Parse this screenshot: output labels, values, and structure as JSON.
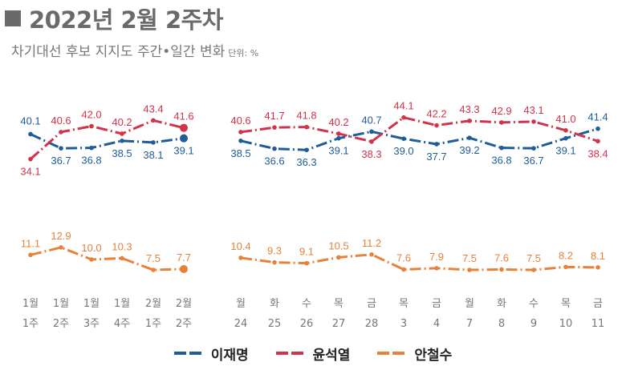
{
  "title": "2022년 2월 2주차",
  "subtitle": "차기대선 후보 지지도 주간•일간 변화",
  "unit": "단위: %",
  "chart_data": [
    {
      "type": "line",
      "categories": [
        [
          "1월",
          "1주"
        ],
        [
          "1월",
          "2주"
        ],
        [
          "1월",
          "3주"
        ],
        [
          "1월",
          "4주"
        ],
        [
          "2월",
          "1주"
        ],
        [
          "2월",
          "2주"
        ]
      ],
      "series": [
        {
          "name": "이재명",
          "color": "#1f5c99",
          "values": [
            40.1,
            36.7,
            36.8,
            38.5,
            38.1,
            39.1
          ]
        },
        {
          "name": "윤석열",
          "color": "#d1344a",
          "values": [
            34.1,
            40.6,
            42.0,
            40.2,
            43.4,
            41.6
          ]
        },
        {
          "name": "안철수",
          "color": "#e8823a",
          "values": [
            11.1,
            12.9,
            10.0,
            10.3,
            7.5,
            7.7
          ]
        }
      ],
      "value_labels": [
        [
          "40.1",
          "36.7",
          "36.8",
          "38.5",
          "38.1",
          "39.1"
        ],
        [
          "34.1",
          "40.6",
          "42.0",
          "40.2",
          "43.4",
          "41.6"
        ],
        [
          "11.1",
          "12.9",
          "10.0",
          "10.3",
          "7.5",
          "7.7"
        ]
      ],
      "grid": false
    },
    {
      "type": "line",
      "categories": [
        [
          "월",
          "24"
        ],
        [
          "화",
          "25"
        ],
        [
          "수",
          "26"
        ],
        [
          "목",
          "27"
        ],
        [
          "금",
          "28"
        ],
        [
          "목",
          "3"
        ],
        [
          "금",
          "4"
        ],
        [
          "월",
          "7"
        ],
        [
          "화",
          "8"
        ],
        [
          "수",
          "9"
        ],
        [
          "목",
          "10"
        ],
        [
          "금",
          "11"
        ]
      ],
      "series": [
        {
          "name": "이재명",
          "color": "#1f5c99",
          "values": [
            38.5,
            36.6,
            36.3,
            39.1,
            40.7,
            39.0,
            37.7,
            39.2,
            36.8,
            36.7,
            39.1,
            41.4
          ]
        },
        {
          "name": "윤석열",
          "color": "#d1344a",
          "values": [
            40.6,
            41.7,
            41.8,
            40.2,
            38.3,
            44.1,
            42.2,
            43.3,
            42.9,
            43.1,
            41.0,
            38.4
          ]
        },
        {
          "name": "안철수",
          "color": "#e8823a",
          "values": [
            10.4,
            9.3,
            9.1,
            10.5,
            11.2,
            7.6,
            7.9,
            7.5,
            7.6,
            7.5,
            8.2,
            8.1
          ]
        }
      ],
      "value_labels": [
        [
          "38.5",
          "36.6",
          "36.3",
          "39.1",
          "40.7",
          "39.0",
          "37.7",
          "39.2",
          "36.8",
          "36.7",
          "39.1",
          "41.4"
        ],
        [
          "40.6",
          "41.7",
          "41.8",
          "40.2",
          "38.3",
          "44.1",
          "42.2",
          "43.3",
          "42.9",
          "43.1",
          "41.0",
          "38.4"
        ],
        [
          "10.4",
          "9.3",
          "9.1",
          "10.5",
          "11.2",
          "7.6",
          "7.9",
          "7.5",
          "7.6",
          "7.5",
          "8.2",
          "8.1"
        ]
      ],
      "grid": false
    }
  ],
  "legend": {
    "placement": "bottom",
    "items": [
      "이재명",
      "윤석열",
      "안철수"
    ]
  }
}
